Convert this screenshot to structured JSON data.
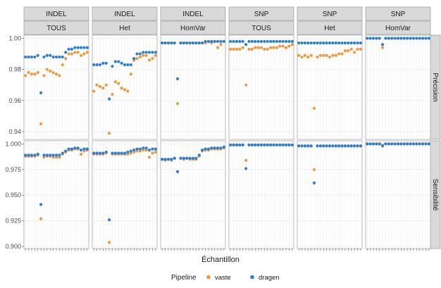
{
  "chart_data": {
    "type": "scatter",
    "xlabel": "Échantillon",
    "legend": {
      "title": "Pipeline",
      "position": "bottom",
      "entries": [
        {
          "name": "vaste",
          "color": "#f0993c"
        },
        {
          "name": "dragen",
          "color": "#2a7fd4"
        }
      ]
    },
    "columns": [
      {
        "type": "INDEL",
        "zygosity": "TOUS"
      },
      {
        "type": "INDEL",
        "zygosity": "Het"
      },
      {
        "type": "INDEL",
        "zygosity": "HomVar"
      },
      {
        "type": "SNP",
        "zygosity": "TOUS"
      },
      {
        "type": "SNP",
        "zygosity": "Het"
      },
      {
        "type": "SNP",
        "zygosity": "HomVar"
      }
    ],
    "rows": [
      {
        "label": "Précision",
        "ylim": [
          0.935,
          1.002
        ],
        "ticks": [
          0.94,
          0.96,
          0.98,
          1.0
        ],
        "tick_labels": [
          "0.94",
          "0.96",
          "0.98",
          "1.00"
        ],
        "panels": [
          {
            "vaste": [
              0.976,
              0.978,
              0.977,
              0.977,
              0.978,
              0.945,
              0.976,
              0.98,
              0.979,
              0.978,
              0.977,
              0.976,
              0.983,
              0.987,
              0.99,
              0.99,
              0.991,
              0.991,
              0.989,
              0.99,
              0.991
            ],
            "dragen": [
              0.988,
              0.988,
              0.988,
              0.988,
              0.989,
              0.965,
              0.988,
              0.989,
              0.989,
              0.988,
              0.988,
              0.988,
              0.988,
              0.991,
              0.993,
              0.993,
              0.994,
              0.994,
              0.994,
              0.994,
              0.994
            ]
          },
          {
            "vaste": [
              0.966,
              0.97,
              0.969,
              0.968,
              0.97,
              0.939,
              0.964,
              0.972,
              0.971,
              0.968,
              0.967,
              0.966,
              0.977,
              0.986,
              0.987,
              0.988,
              0.989,
              0.989,
              0.986,
              0.987,
              0.989
            ],
            "dragen": [
              0.983,
              0.983,
              0.983,
              0.984,
              0.984,
              0.961,
              0.982,
              0.985,
              0.985,
              0.984,
              0.983,
              0.983,
              0.983,
              0.987,
              0.99,
              0.99,
              0.991,
              0.991,
              0.991,
              0.991,
              0.991
            ]
          },
          {
            "vaste": [
              0.997,
              0.997,
              0.997,
              0.997,
              0.997,
              0.958,
              0.997,
              0.997,
              0.997,
              0.997,
              0.997,
              0.997,
              0.997,
              0.997,
              0.997,
              0.998,
              0.997,
              0.998,
              0.994,
              0.996,
              0.998
            ],
            "dragen": [
              0.997,
              0.997,
              0.997,
              0.997,
              0.997,
              0.974,
              0.997,
              0.997,
              0.997,
              0.997,
              0.997,
              0.997,
              0.997,
              0.997,
              0.998,
              0.998,
              0.998,
              0.998,
              0.998,
              0.998,
              0.998
            ]
          },
          {
            "vaste": [
              0.993,
              0.993,
              0.993,
              0.993,
              0.994,
              0.97,
              0.993,
              0.993,
              0.994,
              0.994,
              0.994,
              0.993,
              0.993,
              0.994,
              0.994,
              0.994,
              0.995,
              0.995,
              0.994,
              0.995,
              0.996
            ],
            "dragen": [
              0.998,
              0.998,
              0.998,
              0.998,
              0.998,
              0.996,
              0.998,
              0.998,
              0.998,
              0.998,
              0.998,
              0.998,
              0.998,
              0.998,
              0.998,
              0.998,
              0.998,
              0.998,
              0.998,
              0.998,
              0.998
            ]
          },
          {
            "vaste": [
              0.989,
              0.988,
              0.989,
              0.988,
              0.989,
              0.955,
              0.988,
              0.989,
              0.989,
              0.989,
              0.988,
              0.989,
              0.989,
              0.99,
              0.99,
              0.992,
              0.992,
              0.993,
              0.991,
              0.993,
              0.993
            ],
            "dragen": [
              0.997,
              0.997,
              0.997,
              0.997,
              0.997,
              0.997,
              0.997,
              0.997,
              0.997,
              0.997,
              0.997,
              0.997,
              0.997,
              0.997,
              0.997,
              0.997,
              0.997,
              0.997,
              0.997,
              0.997,
              0.997
            ]
          },
          {
            "vaste": [
              1.0,
              1.0,
              1.0,
              1.0,
              1.0,
              0.994,
              1.0,
              1.0,
              1.0,
              1.0,
              1.0,
              1.0,
              1.0,
              1.0,
              1.0,
              1.0,
              1.0,
              1.0,
              1.0,
              1.0,
              1.0
            ],
            "dragen": [
              1.0,
              1.0,
              1.0,
              1.0,
              1.0,
              0.996,
              1.0,
              1.0,
              1.0,
              1.0,
              1.0,
              1.0,
              1.0,
              1.0,
              1.0,
              1.0,
              1.0,
              1.0,
              1.0,
              1.0,
              1.0
            ]
          }
        ]
      },
      {
        "label": "Sensibilité",
        "ylim": [
          0.898,
          1.003
        ],
        "ticks": [
          0.9,
          0.925,
          0.95,
          0.975,
          1.0
        ],
        "tick_labels": [
          "0.900",
          "0.925",
          "0.950",
          "0.975",
          "1.000"
        ],
        "panels": [
          {
            "vaste": [
              0.988,
              0.988,
              0.988,
              0.988,
              0.989,
              0.927,
              0.987,
              0.988,
              0.988,
              0.987,
              0.987,
              0.987,
              0.99,
              0.992,
              0.994,
              0.994,
              0.995,
              0.995,
              0.99,
              0.993,
              0.994
            ],
            "dragen": [
              0.989,
              0.989,
              0.989,
              0.989,
              0.99,
              0.941,
              0.989,
              0.989,
              0.989,
              0.989,
              0.989,
              0.989,
              0.991,
              0.993,
              0.995,
              0.995,
              0.996,
              0.996,
              0.994,
              0.995,
              0.995
            ]
          },
          {
            "vaste": [
              0.99,
              0.99,
              0.99,
              0.99,
              0.991,
              0.904,
              0.99,
              0.99,
              0.99,
              0.99,
              0.99,
              0.99,
              0.991,
              0.992,
              0.993,
              0.993,
              0.994,
              0.994,
              0.987,
              0.991,
              0.992
            ],
            "dragen": [
              0.991,
              0.991,
              0.991,
              0.991,
              0.992,
              0.926,
              0.991,
              0.991,
              0.991,
              0.991,
              0.991,
              0.992,
              0.993,
              0.994,
              0.995,
              0.995,
              0.996,
              0.996,
              0.994,
              0.995,
              0.995
            ]
          },
          {
            "vaste": [
              0.985,
              0.984,
              0.985,
              0.984,
              0.986,
              0.973,
              0.986,
              0.985,
              0.986,
              0.985,
              0.985,
              0.985,
              0.988,
              0.993,
              0.994,
              0.994,
              0.995,
              0.995,
              0.995,
              0.995,
              0.996
            ],
            "dragen": [
              0.985,
              0.985,
              0.985,
              0.985,
              0.986,
              0.973,
              0.986,
              0.986,
              0.986,
              0.986,
              0.986,
              0.986,
              0.989,
              0.994,
              0.995,
              0.995,
              0.996,
              0.996,
              0.996,
              0.996,
              0.997
            ]
          },
          {
            "vaste": [
              0.999,
              0.999,
              0.999,
              0.999,
              0.999,
              0.984,
              0.999,
              0.999,
              0.999,
              0.999,
              0.999,
              0.999,
              0.999,
              0.999,
              0.999,
              0.999,
              0.999,
              0.999,
              0.999,
              0.999,
              0.999
            ],
            "dragen": [
              0.999,
              0.999,
              0.999,
              0.999,
              0.999,
              0.976,
              0.999,
              0.999,
              0.999,
              0.999,
              0.999,
              0.999,
              0.999,
              0.999,
              0.999,
              0.999,
              0.999,
              0.999,
              0.999,
              0.999,
              0.999
            ]
          },
          {
            "vaste": [
              0.998,
              0.998,
              0.998,
              0.998,
              0.998,
              0.975,
              0.998,
              0.998,
              0.998,
              0.998,
              0.998,
              0.998,
              0.998,
              0.998,
              0.998,
              0.998,
              0.998,
              0.998,
              0.998,
              0.998,
              0.998
            ],
            "dragen": [
              0.998,
              0.998,
              0.998,
              0.998,
              0.998,
              0.962,
              0.998,
              0.998,
              0.998,
              0.998,
              0.998,
              0.998,
              0.998,
              0.998,
              0.998,
              0.998,
              0.998,
              0.998,
              0.998,
              0.998,
              0.998
            ]
          },
          {
            "vaste": [
              1.0,
              1.0,
              1.0,
              1.0,
              1.0,
              0.999,
              1.0,
              1.0,
              1.0,
              1.0,
              1.0,
              1.0,
              1.0,
              1.0,
              1.0,
              1.0,
              1.0,
              1.0,
              1.0,
              1.0,
              1.0
            ],
            "dragen": [
              1.0,
              1.0,
              1.0,
              1.0,
              1.0,
              0.998,
              1.0,
              1.0,
              1.0,
              1.0,
              1.0,
              1.0,
              1.0,
              1.0,
              1.0,
              1.0,
              1.0,
              1.0,
              1.0,
              1.0,
              1.0
            ]
          }
        ]
      }
    ],
    "grid": true,
    "samples_per_panel": 21
  }
}
